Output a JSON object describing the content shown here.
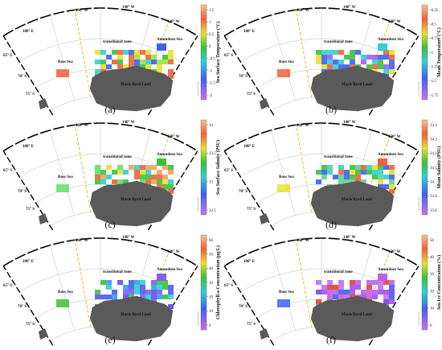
{
  "panels": [
    {
      "label": "(a)",
      "colorbar": {
        "title": "Sea Surface Temperature (°C)",
        "ticks": [
          "1.5",
          "1",
          "0.5",
          "0",
          "-0.5",
          "-1",
          "-1.5",
          "-2"
        ]
      }
    },
    {
      "label": "(b)",
      "colorbar": {
        "title": "Mean Temperature (°C)",
        "ticks": [
          "-0.25",
          "-0.5",
          "-0.75",
          "-1",
          "-1.25",
          "-1.5",
          "-1.75"
        ]
      }
    },
    {
      "label": "(c)",
      "colorbar": {
        "title": "Sea Surface Salinity (PSU)",
        "ticks": [
          "34",
          "33.5",
          "33",
          "32.5"
        ]
      }
    },
    {
      "label": "(d)",
      "colorbar": {
        "title": "Mean Salinity (PSU)",
        "ticks": [
          "34.4",
          "34.3",
          "34.2",
          "34.1",
          "34",
          "33.9",
          "33.8"
        ]
      }
    },
    {
      "label": "(e)",
      "colorbar": {
        "title": "Chlorophyll-a Concentration (μg/L)",
        "ticks": [
          "60",
          "50",
          "40",
          "30",
          "20",
          "10",
          "0"
        ]
      }
    },
    {
      "label": "(f)",
      "colorbar": {
        "title": "Sea Ice Concentration (%)",
        "ticks": [
          "50",
          "40",
          "30",
          "20",
          "10",
          "0"
        ]
      }
    }
  ],
  "map_labels": {
    "lon_180": "180° E",
    "lon_160": "160° W",
    "lon_140": "140° W",
    "lon_120": "120° W",
    "lat_65": "65° S",
    "lat_70": "70° S",
    "lat_75": "75° S",
    "ross": "Ross Sea",
    "transitional": "transitional zone",
    "amundsen": "Amundsen Sea",
    "land": "Marie Byrd Land"
  },
  "watermark": "Ocean Data View"
}
